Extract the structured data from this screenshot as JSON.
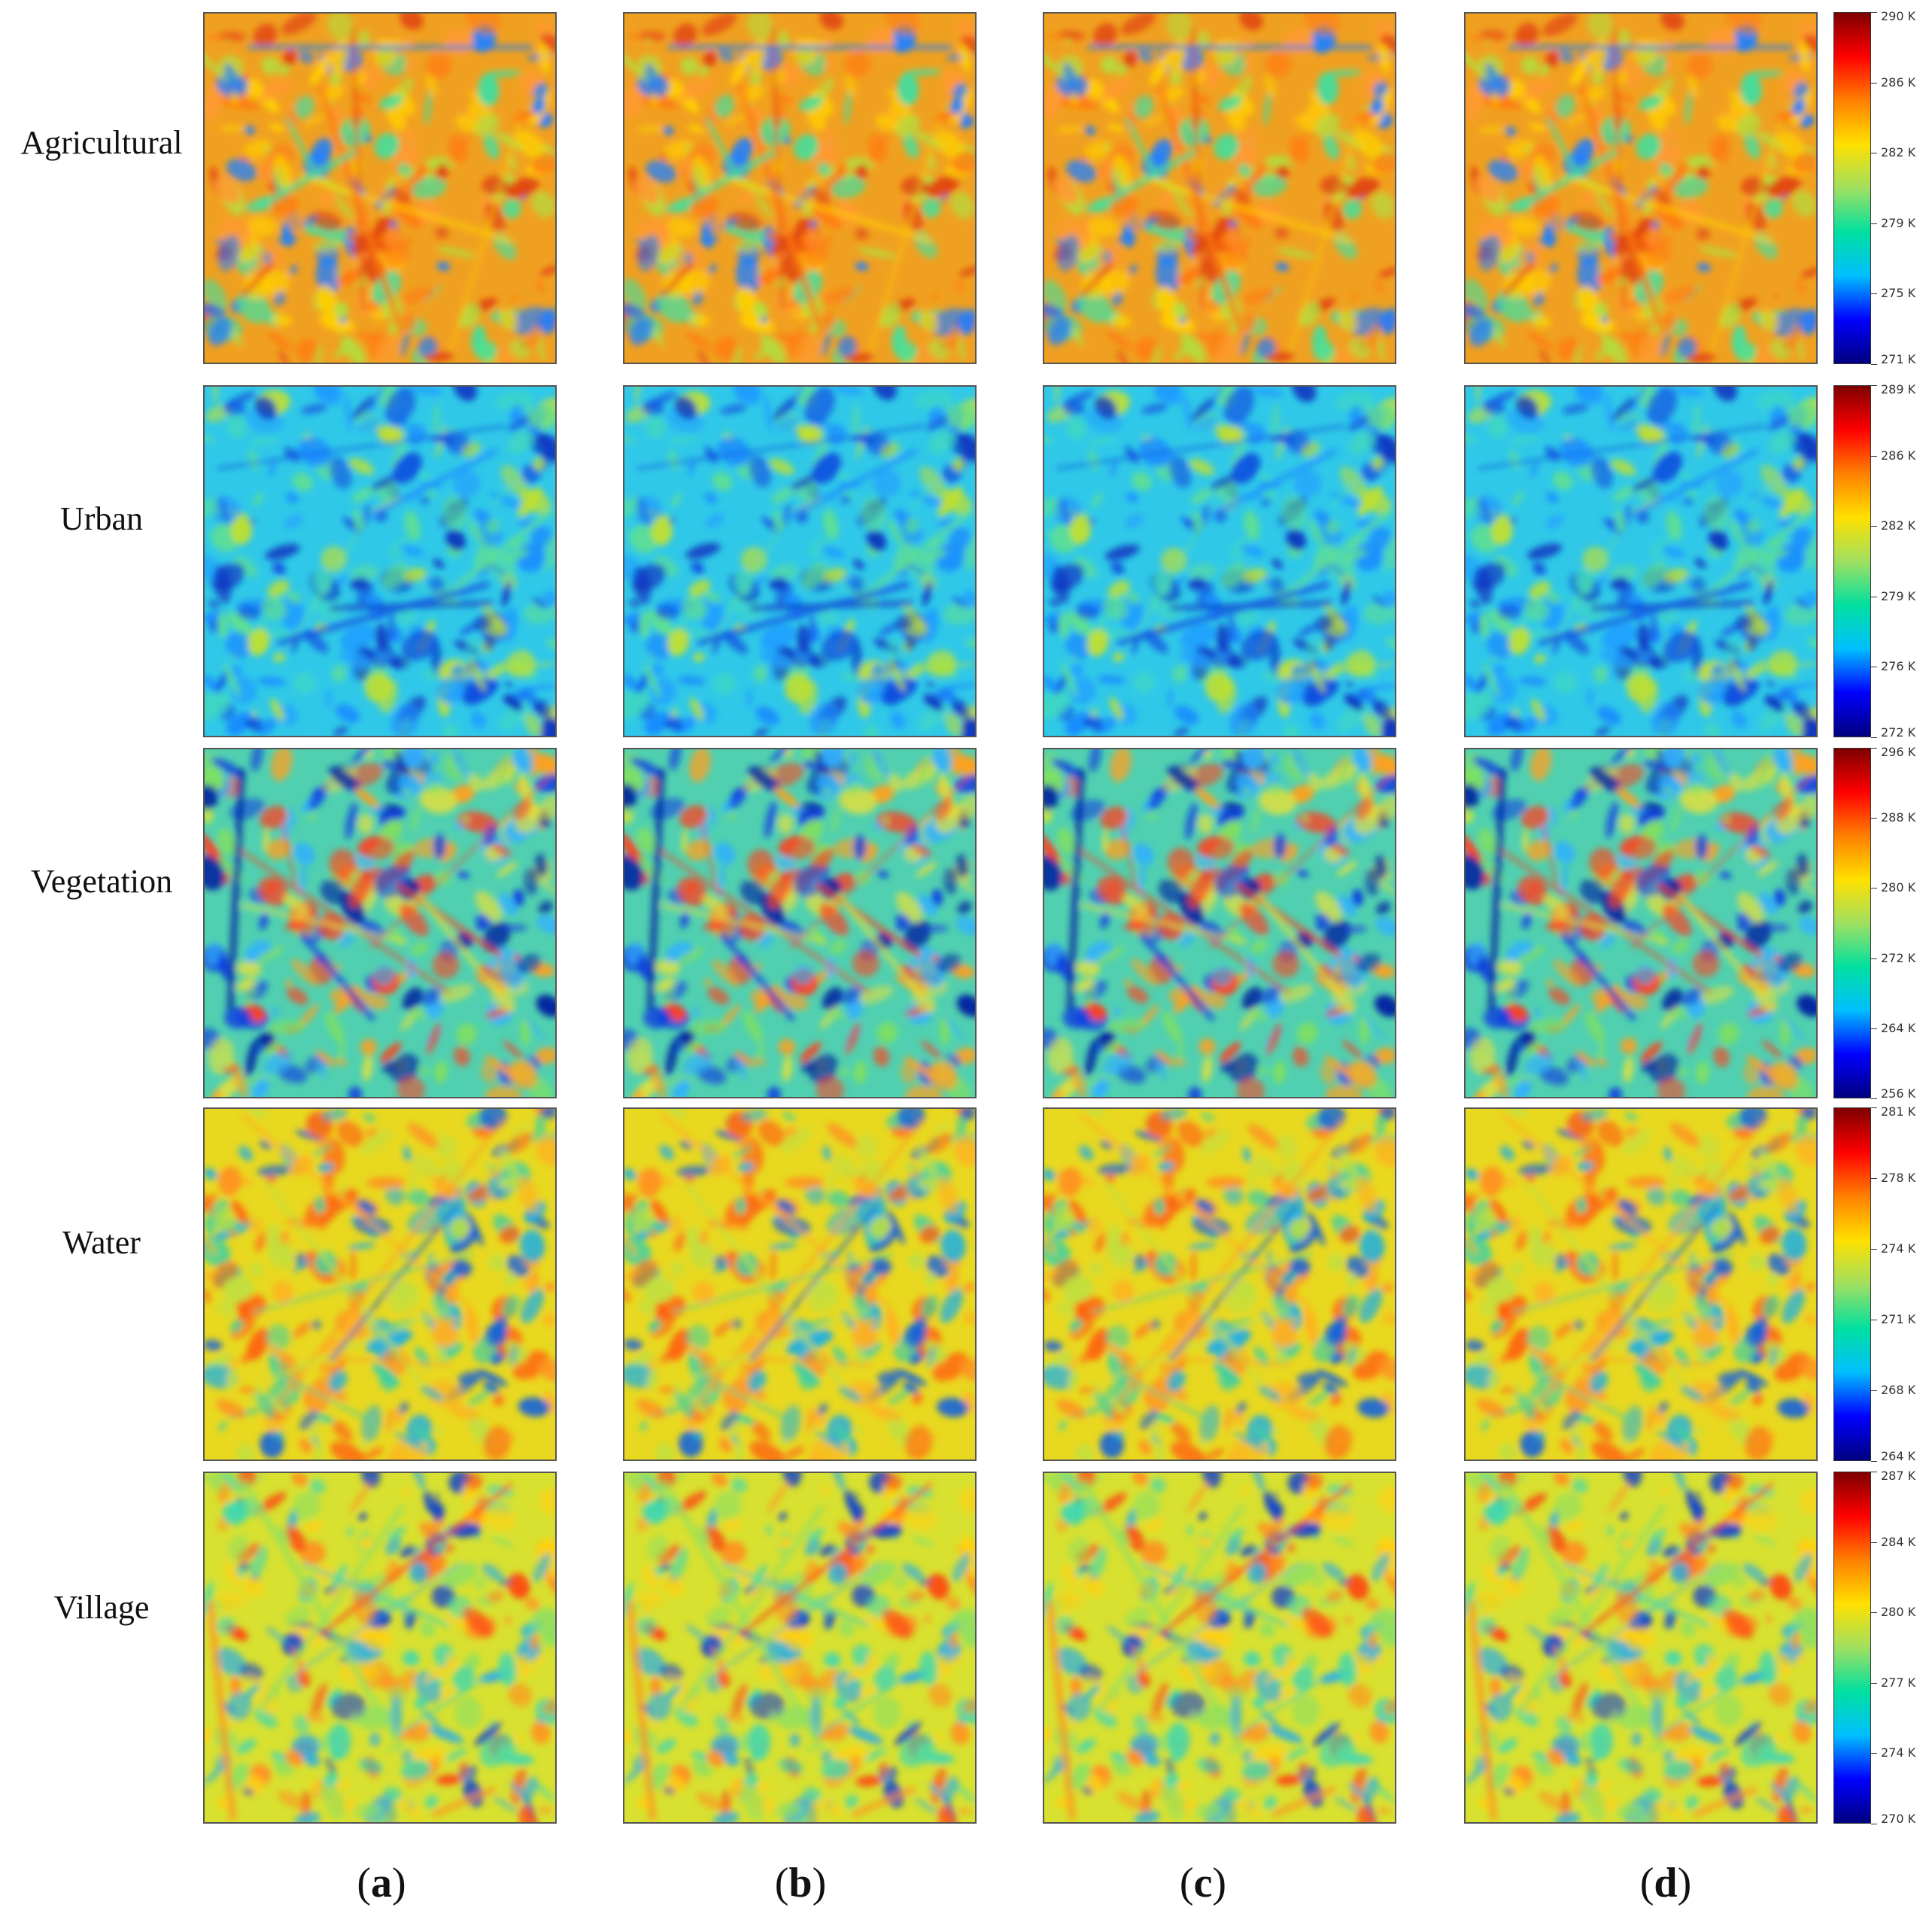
{
  "rows": [
    {
      "label": "Agricultural",
      "scale": {
        "ticks": [
          "290 K",
          "286 K",
          "282 K",
          "279 K",
          "275 K",
          "271 K"
        ]
      },
      "palette": "agri"
    },
    {
      "label": "Urban",
      "scale": {
        "ticks": [
          "289 K",
          "286 K",
          "282 K",
          "279 K",
          "276 K",
          "272 K"
        ]
      },
      "palette": "urban"
    },
    {
      "label": "Vegetation",
      "scale": {
        "ticks": [
          "296 K",
          "288 K",
          "280 K",
          "272 K",
          "264 K",
          "256 K"
        ]
      },
      "palette": "veg"
    },
    {
      "label": "Water",
      "scale": {
        "ticks": [
          "281 K",
          "278 K",
          "274 K",
          "271 K",
          "268 K",
          "264 K"
        ]
      },
      "palette": "water"
    },
    {
      "label": "Village",
      "scale": {
        "ticks": [
          "287 K",
          "284 K",
          "280 K",
          "277 K",
          "274 K",
          "270 K"
        ]
      },
      "palette": "village"
    }
  ],
  "columns": [
    {
      "open": "(",
      "letter": "a",
      "close": ")"
    },
    {
      "open": "(",
      "letter": "b",
      "close": ")"
    },
    {
      "open": "(",
      "letter": "c",
      "close": ")"
    },
    {
      "open": "(",
      "letter": "d",
      "close": ")"
    }
  ],
  "colormap": {
    "name": "jet",
    "stops": [
      "#00007f",
      "#0000ff",
      "#00bfff",
      "#00e0a0",
      "#a0e060",
      "#ffe000",
      "#ff8000",
      "#ff0000",
      "#7f0000"
    ]
  }
}
